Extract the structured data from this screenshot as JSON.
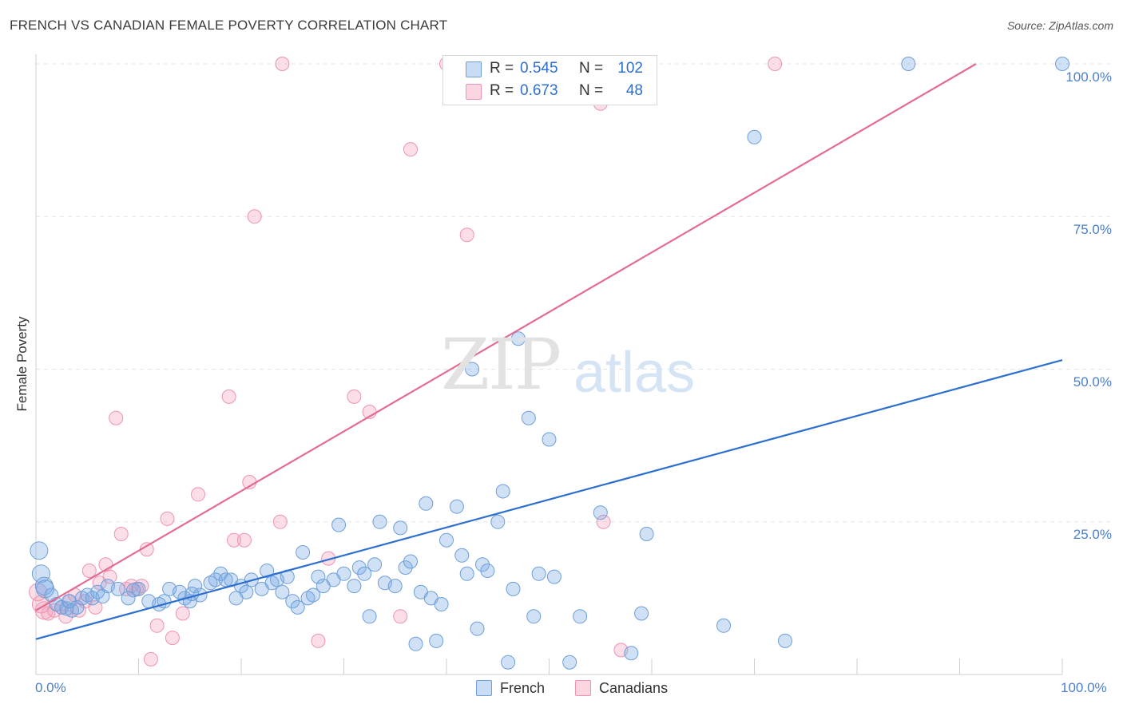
{
  "header": {
    "title": "FRENCH VS CANADIAN FEMALE POVERTY CORRELATION CHART",
    "source": "Source: ZipAtlas.com"
  },
  "watermark": {
    "zip": "ZIP",
    "atlas": "atlas"
  },
  "legend": {
    "rows": [
      {
        "r_label": "R =",
        "r_value": "0.545",
        "n_label": "N =",
        "n_value": "102",
        "color": "#a9c8ef"
      },
      {
        "r_label": "R =",
        "r_value": "0.673",
        "n_label": "N =",
        "n_value": "48",
        "color": "#f6b6c8"
      }
    ],
    "bottom": [
      {
        "label": "French",
        "color": "#a9c8ef"
      },
      {
        "label": "Canadians",
        "color": "#f6b6c8"
      }
    ]
  },
  "colors": {
    "french_fill": "rgba(120,170,230,0.35)",
    "french_stroke": "#6e9fd8",
    "french_line": "#2d6fcf",
    "canadians_fill": "rgba(244,160,185,0.35)",
    "canadians_stroke": "#ee94b0",
    "canadians_line": "#e36a93",
    "tick_text": "#4a7fc9",
    "grid": "#e3e3e3"
  },
  "chart_data": {
    "type": "scatter",
    "title": "FRENCH VS CANADIAN FEMALE POVERTY CORRELATION CHART",
    "xlabel": "",
    "ylabel": "Female Poverty",
    "xlim": [
      0,
      100
    ],
    "ylim": [
      0,
      100
    ],
    "x_tick_labels": [
      "0.0%",
      "100.0%"
    ],
    "y_tick_labels": [
      "25.0%",
      "50.0%",
      "75.0%",
      "100.0%"
    ],
    "y_ticks": [
      25,
      50,
      75,
      100
    ],
    "grid": true,
    "legend_position": "top-center",
    "series": [
      {
        "name": "French",
        "R": 0.545,
        "N": 102,
        "trend": {
          "x": [
            0,
            100
          ],
          "y": [
            5.8,
            51.5
          ]
        },
        "points": [
          [
            0.3,
            20.3
          ],
          [
            0.5,
            16.5
          ],
          [
            0.8,
            14.5
          ],
          [
            1.5,
            13
          ],
          [
            2,
            11.5
          ],
          [
            2.5,
            11
          ],
          [
            3,
            10.8
          ],
          [
            3.5,
            10.5
          ],
          [
            4,
            11
          ],
          [
            4.5,
            12.5
          ],
          [
            5,
            13
          ],
          [
            5.5,
            12.5
          ],
          [
            6,
            13.5
          ],
          [
            7,
            14.5
          ],
          [
            8,
            14
          ],
          [
            9,
            12.5
          ],
          [
            10,
            14
          ],
          [
            11,
            12
          ],
          [
            12,
            11.5
          ],
          [
            12.5,
            12
          ],
          [
            13,
            14
          ],
          [
            14,
            13.5
          ],
          [
            14.5,
            12.5
          ],
          [
            15,
            12
          ],
          [
            15.5,
            14.5
          ],
          [
            16,
            13
          ],
          [
            17,
            15
          ],
          [
            17.5,
            15.5
          ],
          [
            18,
            16.5
          ],
          [
            18.5,
            15.5
          ],
          [
            19,
            15.5
          ],
          [
            19.5,
            12.5
          ],
          [
            20,
            14.5
          ],
          [
            20.5,
            13.5
          ],
          [
            21,
            15.5
          ],
          [
            22,
            14
          ],
          [
            22.5,
            17
          ],
          [
            23,
            15
          ],
          [
            23.5,
            15.5
          ],
          [
            24,
            13.5
          ],
          [
            24.5,
            16
          ],
          [
            25,
            12
          ],
          [
            25.5,
            11
          ],
          [
            26,
            20
          ],
          [
            27,
            13
          ],
          [
            27.5,
            16
          ],
          [
            28,
            14.5
          ],
          [
            29,
            15.5
          ],
          [
            29.5,
            24.5
          ],
          [
            30,
            16.5
          ],
          [
            31,
            14.5
          ],
          [
            31.5,
            17.5
          ],
          [
            32,
            16.5
          ],
          [
            32.5,
            9.5
          ],
          [
            33,
            18
          ],
          [
            33.5,
            25
          ],
          [
            34,
            15
          ],
          [
            35,
            14.5
          ],
          [
            35.5,
            24
          ],
          [
            36,
            17.5
          ],
          [
            37,
            5
          ],
          [
            37.5,
            13.5
          ],
          [
            38,
            28
          ],
          [
            38.5,
            12.5
          ],
          [
            39,
            5.5
          ],
          [
            39.5,
            11.5
          ],
          [
            40,
            22
          ],
          [
            41,
            27.5
          ],
          [
            41.5,
            19.5
          ],
          [
            42,
            16.5
          ],
          [
            42.5,
            50
          ],
          [
            43,
            7.5
          ],
          [
            43.5,
            18
          ],
          [
            44,
            17
          ],
          [
            45,
            25
          ],
          [
            45.5,
            30
          ],
          [
            46,
            2
          ],
          [
            46.5,
            14
          ],
          [
            47,
            55
          ],
          [
            48,
            42
          ],
          [
            48.5,
            9.5
          ],
          [
            49,
            16.5
          ],
          [
            50,
            38.5
          ],
          [
            50.5,
            16
          ],
          [
            52,
            2
          ],
          [
            53,
            9.5
          ],
          [
            55,
            26.5
          ],
          [
            58,
            3.5
          ],
          [
            59,
            10
          ],
          [
            59.5,
            23
          ],
          [
            67,
            8
          ],
          [
            70,
            88
          ],
          [
            73,
            5.5
          ],
          [
            85,
            100
          ],
          [
            100,
            100
          ],
          [
            0.9,
            14
          ],
          [
            3.2,
            12
          ],
          [
            6.5,
            12.8
          ],
          [
            9.5,
            13.8
          ],
          [
            15.2,
            13.2
          ],
          [
            26.5,
            12.5
          ],
          [
            36.5,
            18.5
          ]
        ]
      },
      {
        "name": "Canadians",
        "R": 0.673,
        "N": 48,
        "trend": {
          "x": [
            0,
            91.6
          ],
          "y": [
            10.5,
            100
          ]
        },
        "points": [
          [
            0.2,
            13.5
          ],
          [
            0.8,
            10.5
          ],
          [
            1.2,
            10
          ],
          [
            1.8,
            10.5
          ],
          [
            2.5,
            11
          ],
          [
            2.9,
            9.5
          ],
          [
            3.3,
            12
          ],
          [
            3.8,
            13
          ],
          [
            4.2,
            10.5
          ],
          [
            4.8,
            12
          ],
          [
            5.2,
            17
          ],
          [
            5.8,
            11
          ],
          [
            6.2,
            15
          ],
          [
            6.8,
            18
          ],
          [
            7.2,
            16
          ],
          [
            7.8,
            42
          ],
          [
            8.3,
            23
          ],
          [
            8.8,
            14
          ],
          [
            9.3,
            14.5
          ],
          [
            9.8,
            14
          ],
          [
            10.3,
            14.5
          ],
          [
            10.8,
            20.5
          ],
          [
            11.2,
            2.5
          ],
          [
            11.8,
            8
          ],
          [
            12.8,
            25.5
          ],
          [
            13.3,
            6
          ],
          [
            14.3,
            10
          ],
          [
            15.8,
            29.5
          ],
          [
            18.8,
            45.5
          ],
          [
            19.3,
            22
          ],
          [
            20.3,
            22
          ],
          [
            20.8,
            31.5
          ],
          [
            21.3,
            75
          ],
          [
            23.8,
            25
          ],
          [
            24,
            100
          ],
          [
            27.5,
            5.5
          ],
          [
            28.5,
            19
          ],
          [
            31,
            45.5
          ],
          [
            32.5,
            43
          ],
          [
            35.5,
            9.5
          ],
          [
            36.5,
            86
          ],
          [
            40,
            100
          ],
          [
            42,
            72
          ],
          [
            55,
            93.5
          ],
          [
            55.3,
            25
          ],
          [
            57,
            4
          ],
          [
            72,
            100
          ],
          [
            0.5,
            11.5
          ]
        ]
      }
    ]
  }
}
